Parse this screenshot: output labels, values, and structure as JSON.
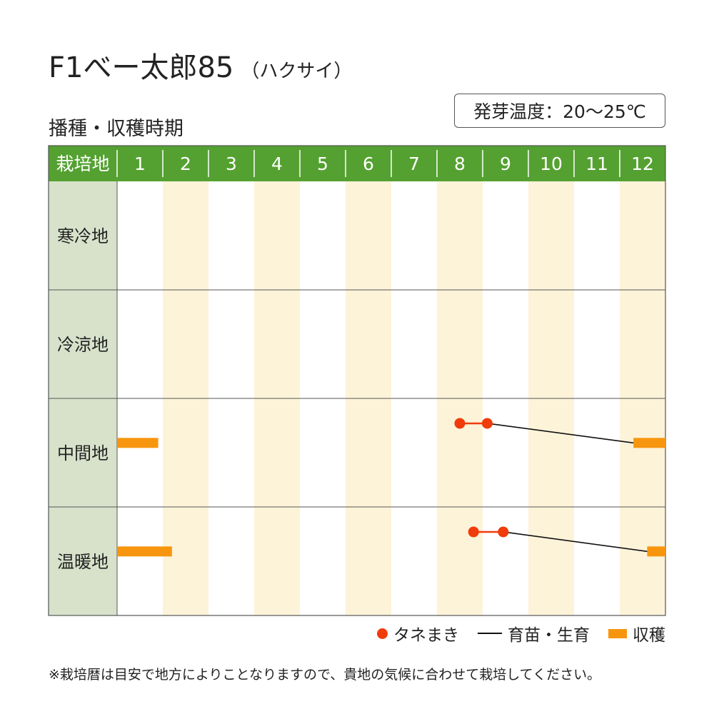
{
  "title": {
    "main": "F1べー太郎85",
    "sub": "（ハクサイ）"
  },
  "section_title": "播種・収穫時期",
  "germination": "発芽温度：20～25℃",
  "note": "※栽培暦は目安で地方によりことなりますので、貴地の気候に合わせて栽培してください。",
  "legend": {
    "sowing": "タネまき",
    "raising": "育苗・生育",
    "harvest": "収穫"
  },
  "colors": {
    "header_green": "#54a131",
    "row_header": "#d8e2cb",
    "stripe": "#fdf3d9",
    "sowing": "#f03c0a",
    "harvest": "#f7960e",
    "line": "#111111"
  },
  "chart_data": {
    "type": "gantt",
    "header_label": "栽培地",
    "months": [
      "1",
      "2",
      "3",
      "4",
      "5",
      "6",
      "7",
      "8",
      "9",
      "10",
      "11",
      "12"
    ],
    "regions": [
      {
        "name": "寒冷地",
        "sowing": [],
        "growth": [],
        "harvest": []
      },
      {
        "name": "冷涼地",
        "sowing": [],
        "growth": [],
        "harvest": []
      },
      {
        "name": "中間地",
        "sowing": [
          [
            8.5,
            9.1
          ]
        ],
        "growth": [
          [
            9.1,
            12.3
          ]
        ],
        "harvest": [
          [
            1.0,
            1.9
          ],
          [
            12.3,
            13.0
          ]
        ]
      },
      {
        "name": "温暖地",
        "sowing": [
          [
            8.8,
            9.45
          ]
        ],
        "growth": [
          [
            9.45,
            12.6
          ]
        ],
        "harvest": [
          [
            1.0,
            2.2
          ],
          [
            12.6,
            13.0
          ]
        ]
      }
    ]
  }
}
